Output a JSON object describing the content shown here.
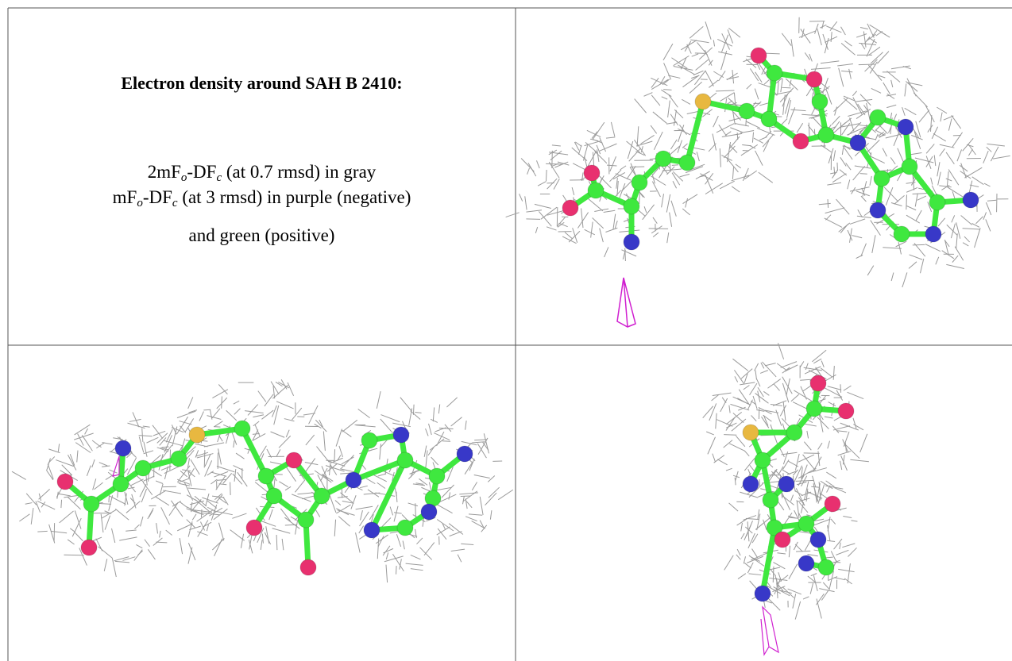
{
  "caption": {
    "title": "Electron density around SAH B 2410:",
    "lines": [
      [
        {
          "text": "2mF"
        },
        {
          "text": "o",
          "sub": true
        },
        {
          "text": "-DF"
        },
        {
          "text": "c",
          "sub": true
        },
        {
          "text": " (at 0.7 rmsd) in gray"
        }
      ],
      [
        {
          "text": "mF"
        },
        {
          "text": "o",
          "sub": true
        },
        {
          "text": "-DF"
        },
        {
          "text": "c",
          "sub": true
        },
        {
          "text": " (at 3 rmsd) in purple (negative)"
        }
      ],
      [
        {
          "text": "and green (positive)"
        }
      ]
    ]
  }
}
